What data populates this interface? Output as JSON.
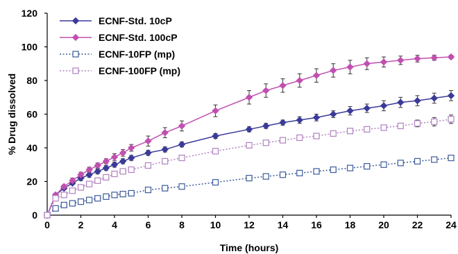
{
  "chart_data": {
    "type": "line",
    "title": "",
    "xlabel": "Time (hours)",
    "ylabel": "% Drug dissolved",
    "xlim": [
      0,
      24
    ],
    "ylim": [
      0,
      120
    ],
    "xticks": [
      0,
      2,
      4,
      6,
      8,
      10,
      12,
      14,
      16,
      18,
      20,
      22,
      24
    ],
    "yticks": [
      0,
      20,
      40,
      60,
      80,
      100,
      120
    ],
    "grid": false,
    "legend_position": "top-left",
    "series": [
      {
        "name": "ECNF-Std. 10cP",
        "color": "#3A3A9A",
        "marker": "filled-diamond",
        "line_style": "solid",
        "x": [
          0,
          0.5,
          1,
          1.5,
          2,
          2.5,
          3,
          3.5,
          4,
          4.5,
          5,
          6,
          7,
          8,
          10,
          12,
          13,
          14,
          15,
          16,
          17,
          18,
          19,
          20,
          21,
          22,
          23,
          24
        ],
        "y": [
          0,
          12,
          16,
          19,
          22,
          24,
          26,
          28,
          30,
          32,
          34,
          37,
          39,
          42,
          47,
          51,
          53,
          55,
          56.5,
          58,
          60,
          62,
          63.5,
          65,
          67,
          68,
          69.5,
          71
        ],
        "error": [
          0,
          1,
          1,
          1,
          1.5,
          1.5,
          1.5,
          1.5,
          1.5,
          1.5,
          1.5,
          1.5,
          1.5,
          1.5,
          1.5,
          1.5,
          1.5,
          1.5,
          2,
          2,
          2,
          2.5,
          2.5,
          3,
          3,
          3,
          3,
          3
        ]
      },
      {
        "name": "ECNF-Std. 100cP",
        "color": "#C050B0",
        "marker": "filled-diamond",
        "line_style": "solid",
        "x": [
          0,
          0.5,
          1,
          1.5,
          2,
          2.5,
          3,
          3.5,
          4,
          4.5,
          5,
          6,
          7,
          8,
          10,
          12,
          13,
          14,
          15,
          16,
          17,
          18,
          19,
          20,
          21,
          22,
          23,
          24
        ],
        "y": [
          0,
          12,
          17,
          20.5,
          24,
          27,
          29.5,
          32,
          34.5,
          37,
          40,
          44,
          49,
          53,
          62,
          70,
          74,
          77,
          80,
          83,
          86,
          88,
          90,
          91,
          92,
          93,
          93.5,
          94
        ],
        "error": [
          0,
          1,
          1,
          1.5,
          1.5,
          1.5,
          1.5,
          1.5,
          2,
          2,
          2,
          3,
          3,
          3,
          3.5,
          4,
          4,
          4,
          4,
          4,
          4,
          4,
          3.5,
          3,
          2.5,
          2,
          1.5,
          1
        ]
      },
      {
        "name": "ECNF-10FP (mp)",
        "color": "#3A5A9A",
        "marker": "open-square",
        "line_style": "dotted",
        "x": [
          0,
          0.5,
          1,
          1.5,
          2,
          2.5,
          3,
          3.5,
          4,
          4.5,
          5,
          6,
          7,
          8,
          10,
          12,
          13,
          14,
          15,
          16,
          17,
          18,
          19,
          20,
          21,
          22,
          23,
          24
        ],
        "y": [
          0,
          4,
          6,
          7,
          8,
          9,
          10,
          11,
          12,
          12.5,
          13,
          15,
          16,
          17,
          19.5,
          22,
          23,
          24,
          25,
          26,
          27,
          28,
          29,
          30,
          31,
          32,
          33,
          34
        ],
        "error": [
          0,
          0.5,
          0.5,
          0.5,
          0.5,
          0.5,
          0.5,
          0.5,
          0.5,
          0.5,
          0.5,
          0.5,
          0.5,
          0.5,
          0.8,
          0.8,
          0.8,
          0.8,
          0.8,
          0.8,
          0.8,
          0.8,
          0.8,
          1,
          1,
          1,
          1,
          1
        ]
      },
      {
        "name": "ECNF-100FP (mp)",
        "color": "#B080C0",
        "marker": "open-square",
        "line_style": "dotted",
        "x": [
          0,
          0.5,
          1,
          1.5,
          2,
          2.5,
          3,
          3.5,
          4,
          4.5,
          5,
          6,
          7,
          8,
          10,
          12,
          13,
          14,
          15,
          16,
          17,
          18,
          19,
          20,
          21,
          22,
          23,
          24
        ],
        "y": [
          0,
          10,
          12,
          14.5,
          16.5,
          18.5,
          20.5,
          22.5,
          24.5,
          26,
          27,
          29.5,
          32,
          34,
          38,
          41.5,
          43,
          44.5,
          46,
          47,
          48.5,
          50,
          51,
          52,
          53,
          54.5,
          55.5,
          57
        ],
        "error": [
          0,
          0.5,
          0.5,
          0.5,
          0.5,
          0.5,
          0.5,
          0.5,
          0.5,
          0.5,
          0.5,
          0.8,
          0.8,
          0.8,
          1,
          1,
          1,
          1,
          1,
          1,
          1,
          1.5,
          1.5,
          1.5,
          1.5,
          2,
          2.5,
          2.5
        ]
      }
    ]
  }
}
